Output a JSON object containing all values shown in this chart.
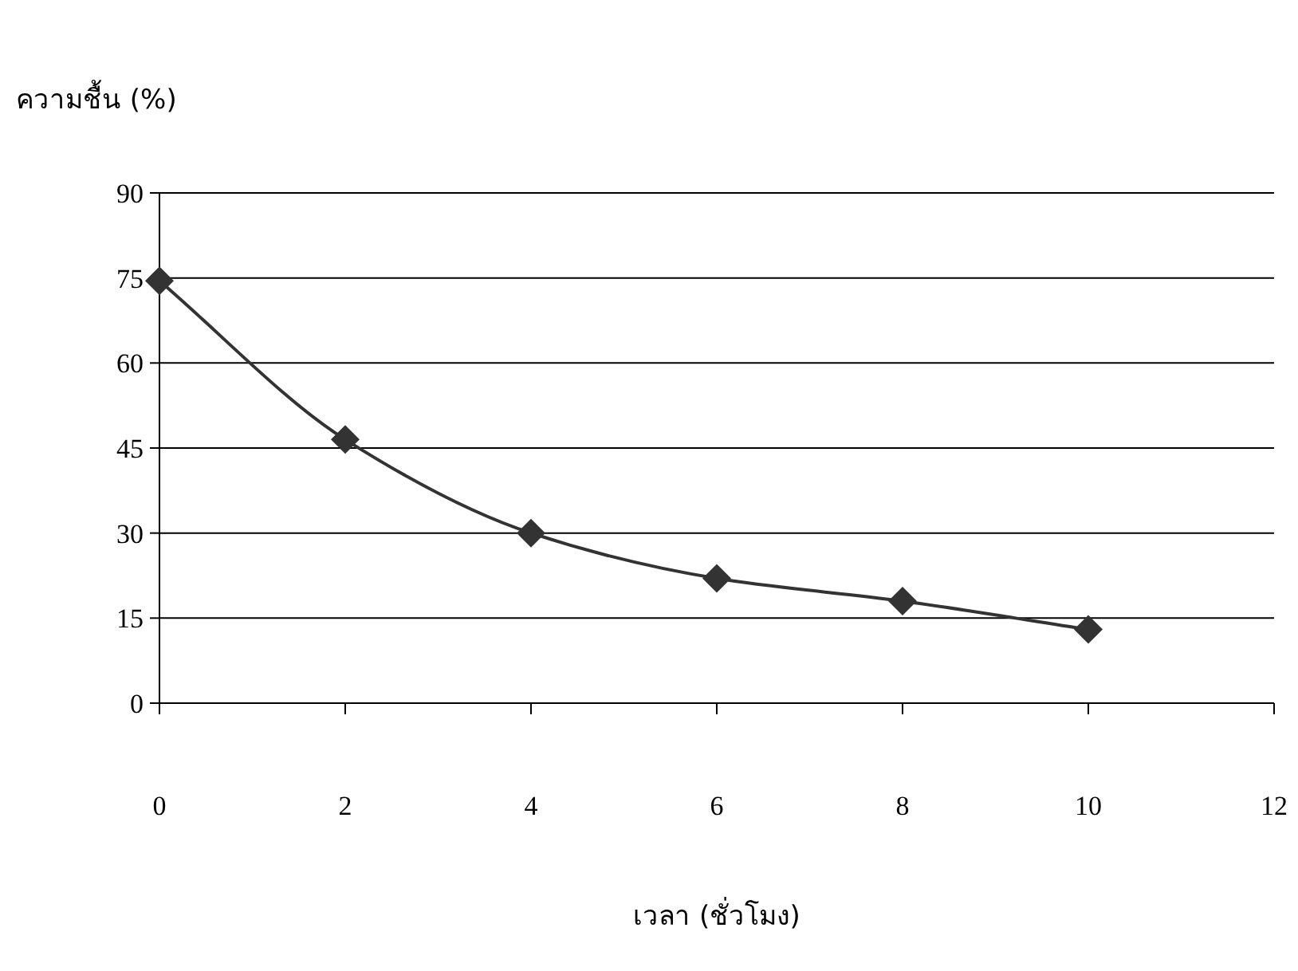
{
  "chart_data": {
    "type": "line",
    "xlabel": "เวลา (ชั่วโมง)",
    "ylabel": "ความชื้น (%)",
    "x": [
      0,
      2,
      4,
      6,
      8,
      10
    ],
    "series": [
      {
        "color": "#333333",
        "values": [
          74.5,
          46.5,
          30,
          22,
          18,
          13
        ]
      }
    ],
    "xlim": [
      0,
      12
    ],
    "xticks": [
      0,
      2,
      4,
      6,
      8,
      10,
      12
    ],
    "ylim": [
      0,
      90
    ],
    "yticks": [
      0,
      15,
      30,
      45,
      60,
      75,
      90
    ],
    "grid": "y",
    "marker": "diamond",
    "line_style": "solid"
  }
}
